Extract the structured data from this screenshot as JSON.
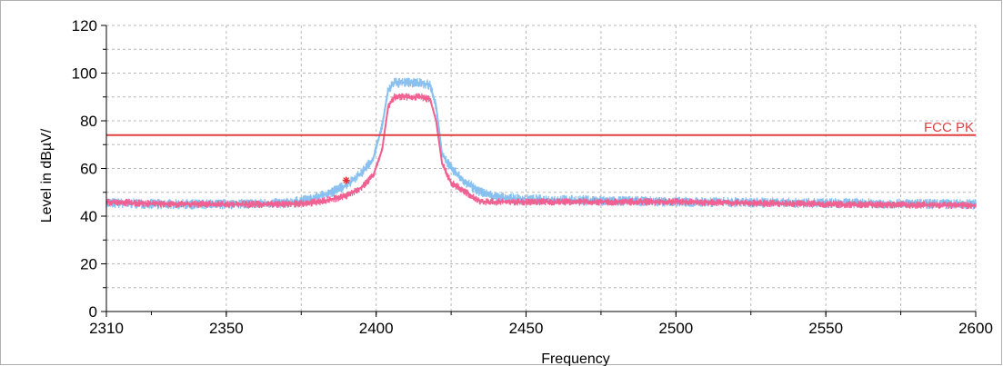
{
  "chart_data": {
    "type": "line",
    "xlabel": "Frequency",
    "ylabel": "Level in dBµV/",
    "xlim": [
      2310,
      2600
    ],
    "ylim": [
      0,
      120
    ],
    "x_ticks": [
      2310,
      2350,
      2400,
      2450,
      2500,
      2550,
      2600
    ],
    "y_ticks": [
      0,
      20,
      40,
      60,
      80,
      100,
      120
    ],
    "grid": true,
    "series": [
      {
        "color": "#f06090",
        "x": [
          2310,
          2330,
          2350,
          2370,
          2378,
          2385,
          2390,
          2395,
          2399,
          2402,
          2404,
          2406,
          2410,
          2415,
          2418,
          2420,
          2422,
          2425,
          2430,
          2435,
          2440,
          2450,
          2500,
          2550,
          2600
        ],
        "y": [
          46,
          45,
          45,
          45,
          45.5,
          47,
          48.5,
          52,
          57,
          68,
          86,
          90,
          90,
          90,
          89,
          80,
          62,
          54,
          50,
          46,
          46,
          46,
          46,
          45,
          44.5
        ]
      },
      {
        "color": "#88c0f0",
        "x": [
          2310,
          2330,
          2350,
          2370,
          2378,
          2385,
          2390,
          2395,
          2399,
          2402,
          2404,
          2406,
          2410,
          2415,
          2418,
          2420,
          2422,
          2425,
          2430,
          2435,
          2440,
          2450,
          2500,
          2550,
          2600
        ],
        "y": [
          45.5,
          45,
          45,
          45.5,
          47,
          50,
          53,
          58,
          64,
          78,
          93,
          96,
          96,
          96,
          95,
          86,
          66,
          60,
          54,
          50,
          48,
          47,
          46,
          45.5,
          45
        ]
      }
    ],
    "limit_lines": [
      {
        "label": "FCC PK",
        "y": 74,
        "color": "#e04040"
      }
    ],
    "markers": [
      {
        "x": 2390,
        "y": 55,
        "color": "#e03030",
        "symbol": "star"
      }
    ]
  }
}
